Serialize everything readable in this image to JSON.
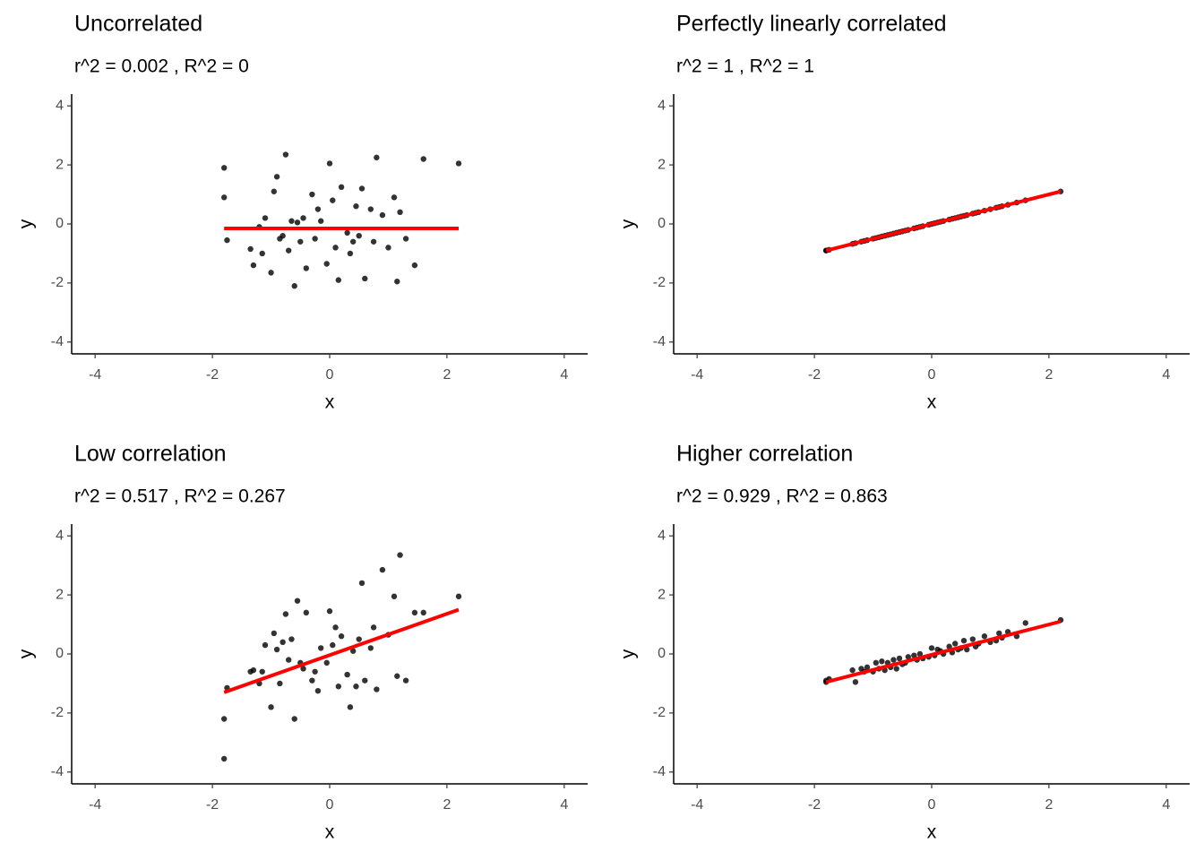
{
  "chart_data": [
    {
      "type": "scatter",
      "title": "Uncorrelated",
      "subtitle": "r^2 = 0.002 , R^2 = 0",
      "x_label": "x",
      "y_label": "y",
      "xlim": [
        -4.4,
        4.4
      ],
      "ylim": [
        -4.4,
        4.4
      ],
      "xticks": [
        -4,
        -2,
        0,
        2,
        4
      ],
      "yticks": [
        -4,
        -2,
        0,
        2,
        4
      ],
      "color": "#000000",
      "x": [
        -1.8,
        -1.8,
        -1.75,
        -1.35,
        -1.3,
        -1.2,
        -1.15,
        -1.1,
        -1.0,
        -0.95,
        -0.9,
        -0.85,
        -0.8,
        -0.75,
        -0.7,
        -0.65,
        -0.6,
        -0.55,
        -0.5,
        -0.45,
        -0.4,
        -0.3,
        -0.25,
        -0.2,
        -0.15,
        -0.05,
        0.0,
        0.05,
        0.1,
        0.15,
        0.2,
        0.3,
        0.35,
        0.4,
        0.45,
        0.5,
        0.55,
        0.6,
        0.7,
        0.75,
        0.8,
        0.9,
        1.0,
        1.1,
        1.15,
        1.2,
        1.3,
        1.45,
        1.6,
        2.2
      ],
      "y": [
        0.9,
        1.9,
        -0.55,
        -0.85,
        -1.4,
        -0.1,
        -1.0,
        0.2,
        -1.65,
        1.1,
        1.6,
        -0.5,
        -0.4,
        2.35,
        -0.9,
        0.1,
        -2.1,
        0.05,
        -0.6,
        0.2,
        -1.5,
        1.0,
        -0.5,
        0.5,
        0.1,
        -1.35,
        2.05,
        0.8,
        -0.8,
        -1.9,
        1.25,
        -0.3,
        -1.0,
        -0.6,
        0.6,
        -0.4,
        1.2,
        -1.85,
        0.5,
        -0.6,
        2.25,
        0.3,
        -0.8,
        0.9,
        -1.95,
        0.4,
        -0.5,
        -1.4,
        2.2,
        2.05
      ],
      "fit": {
        "x": [
          -1.8,
          2.2
        ],
        "y": [
          -0.15,
          -0.15
        ],
        "color": "#ff0000"
      }
    },
    {
      "type": "scatter",
      "title": "Perfectly linearly correlated",
      "subtitle": "r^2 = 1 , R^2 = 1",
      "x_label": "x",
      "y_label": "y",
      "xlim": [
        -4.4,
        4.4
      ],
      "ylim": [
        -4.4,
        4.4
      ],
      "xticks": [
        -4,
        -2,
        0,
        2,
        4
      ],
      "yticks": [
        -4,
        -2,
        0,
        2,
        4
      ],
      "color": "#000000",
      "x": [
        -1.8,
        -1.8,
        -1.75,
        -1.35,
        -1.3,
        -1.2,
        -1.15,
        -1.1,
        -1.0,
        -0.95,
        -0.9,
        -0.85,
        -0.8,
        -0.75,
        -0.7,
        -0.65,
        -0.6,
        -0.55,
        -0.5,
        -0.45,
        -0.4,
        -0.3,
        -0.25,
        -0.2,
        -0.15,
        -0.05,
        0.0,
        0.05,
        0.1,
        0.15,
        0.2,
        0.3,
        0.35,
        0.4,
        0.45,
        0.5,
        0.55,
        0.6,
        0.7,
        0.75,
        0.8,
        0.9,
        1.0,
        1.1,
        1.15,
        1.2,
        1.3,
        1.45,
        1.6,
        2.2
      ],
      "y": [
        -0.9,
        -0.9,
        -0.875,
        -0.675,
        -0.65,
        -0.6,
        -0.575,
        -0.55,
        -0.5,
        -0.475,
        -0.45,
        -0.425,
        -0.4,
        -0.375,
        -0.35,
        -0.325,
        -0.3,
        -0.275,
        -0.25,
        -0.225,
        -0.2,
        -0.15,
        -0.125,
        -0.1,
        -0.075,
        -0.025,
        0,
        0.025,
        0.05,
        0.075,
        0.1,
        0.15,
        0.175,
        0.2,
        0.225,
        0.25,
        0.275,
        0.3,
        0.35,
        0.375,
        0.4,
        0.45,
        0.5,
        0.55,
        0.575,
        0.6,
        0.65,
        0.725,
        0.8,
        1.1
      ],
      "fit": {
        "x": [
          -1.8,
          2.2
        ],
        "y": [
          -0.9,
          1.1
        ],
        "color": "#ff0000"
      }
    },
    {
      "type": "scatter",
      "title": "Low correlation",
      "subtitle": "r^2 = 0.517 , R^2 = 0.267",
      "x_label": "x",
      "y_label": "y",
      "xlim": [
        -4.4,
        4.4
      ],
      "ylim": [
        -4.4,
        4.4
      ],
      "xticks": [
        -4,
        -2,
        0,
        2,
        4
      ],
      "yticks": [
        -4,
        -2,
        0,
        2,
        4
      ],
      "color": "#000000",
      "x": [
        -1.8,
        -1.8,
        -1.75,
        -1.35,
        -1.3,
        -1.2,
        -1.15,
        -1.1,
        -1.0,
        -0.95,
        -0.9,
        -0.85,
        -0.8,
        -0.75,
        -0.7,
        -0.65,
        -0.6,
        -0.55,
        -0.5,
        -0.45,
        -0.4,
        -0.3,
        -0.25,
        -0.2,
        -0.15,
        -0.05,
        0.0,
        0.05,
        0.1,
        0.15,
        0.2,
        0.3,
        0.35,
        0.4,
        0.45,
        0.5,
        0.55,
        0.6,
        0.7,
        0.75,
        0.8,
        0.9,
        1.0,
        1.1,
        1.15,
        1.2,
        1.3,
        1.45,
        1.6,
        2.2
      ],
      "y": [
        -3.55,
        -2.2,
        -1.15,
        -0.6,
        -0.55,
        -1.0,
        -0.6,
        0.3,
        -1.8,
        0.7,
        0.15,
        -1.0,
        0.4,
        1.35,
        -0.2,
        0.5,
        -2.2,
        1.8,
        -0.3,
        -0.5,
        1.4,
        -0.9,
        -0.6,
        -1.25,
        0.2,
        -0.3,
        1.45,
        0.3,
        0.9,
        -1.1,
        0.6,
        -0.7,
        -1.8,
        0.1,
        -1.1,
        0.5,
        2.4,
        -0.9,
        0.2,
        0.9,
        -1.2,
        2.85,
        0.65,
        1.95,
        -0.75,
        3.35,
        -0.9,
        1.4,
        1.4,
        1.95
      ],
      "fit": {
        "x": [
          -1.8,
          2.2
        ],
        "y": [
          -1.3,
          1.5
        ],
        "color": "#ff0000"
      }
    },
    {
      "type": "scatter",
      "title": "Higher correlation",
      "subtitle": "r^2 = 0.929 , R^2 = 0.863",
      "x_label": "x",
      "y_label": "y",
      "xlim": [
        -4.4,
        4.4
      ],
      "ylim": [
        -4.4,
        4.4
      ],
      "xticks": [
        -4,
        -2,
        0,
        2,
        4
      ],
      "yticks": [
        -4,
        -2,
        0,
        2,
        4
      ],
      "color": "#000000",
      "x": [
        -1.8,
        -1.8,
        -1.75,
        -1.35,
        -1.3,
        -1.2,
        -1.15,
        -1.1,
        -1.0,
        -0.95,
        -0.9,
        -0.85,
        -0.8,
        -0.75,
        -0.7,
        -0.65,
        -0.6,
        -0.55,
        -0.5,
        -0.45,
        -0.4,
        -0.3,
        -0.25,
        -0.2,
        -0.15,
        -0.05,
        0.0,
        0.05,
        0.1,
        0.15,
        0.2,
        0.3,
        0.35,
        0.4,
        0.45,
        0.5,
        0.55,
        0.6,
        0.7,
        0.75,
        0.8,
        0.9,
        1.0,
        1.1,
        1.15,
        1.2,
        1.3,
        1.45,
        1.6,
        2.2
      ],
      "y": [
        -0.95,
        -0.9,
        -0.85,
        -0.55,
        -0.95,
        -0.5,
        -0.6,
        -0.45,
        -0.6,
        -0.3,
        -0.5,
        -0.25,
        -0.55,
        -0.3,
        -0.45,
        -0.2,
        -0.5,
        -0.15,
        -0.35,
        -0.3,
        -0.1,
        -0.05,
        -0.2,
        0.0,
        -0.15,
        -0.1,
        0.2,
        -0.05,
        0.15,
        0.1,
        0.0,
        0.25,
        0.05,
        0.35,
        0.15,
        0.2,
        0.45,
        0.15,
        0.5,
        0.25,
        0.35,
        0.6,
        0.4,
        0.45,
        0.7,
        0.55,
        0.75,
        0.6,
        1.05,
        1.15
      ],
      "fit": {
        "x": [
          -1.8,
          2.2
        ],
        "y": [
          -0.95,
          1.1
        ],
        "color": "#ff0000"
      }
    }
  ]
}
